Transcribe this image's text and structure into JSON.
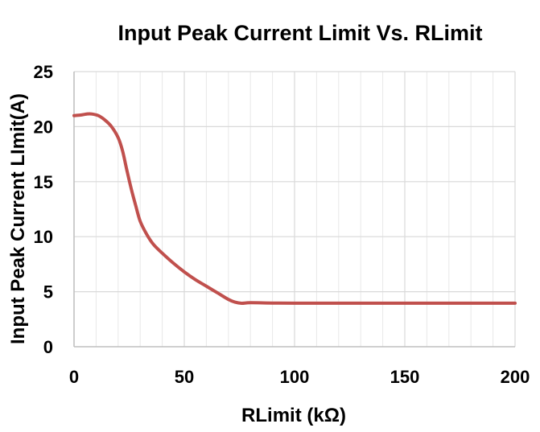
{
  "chart_data": {
    "type": "line",
    "title": "Input Peak Current Limit Vs. RLimit",
    "xlabel": "RLimit (kΩ)",
    "ylabel": "Input Peak Current LImit(A)",
    "xlim": [
      0,
      200
    ],
    "ylim": [
      0,
      25
    ],
    "x_ticks": [
      0,
      50,
      100,
      150,
      200
    ],
    "y_ticks": [
      0,
      5,
      10,
      15,
      20,
      25
    ],
    "x_minor_step": 10,
    "y_major_step": 5,
    "grid": true,
    "legend": "none",
    "series": [
      {
        "color": "#c0504d",
        "points": [
          [
            0,
            21.0
          ],
          [
            3,
            21.05
          ],
          [
            6,
            21.15
          ],
          [
            8,
            21.15
          ],
          [
            11,
            21.0
          ],
          [
            14,
            20.6
          ],
          [
            17,
            20.0
          ],
          [
            20,
            19.0
          ],
          [
            22,
            17.8
          ],
          [
            24,
            16.0
          ],
          [
            26,
            14.3
          ],
          [
            28,
            12.8
          ],
          [
            30,
            11.4
          ],
          [
            33,
            10.2
          ],
          [
            36,
            9.3
          ],
          [
            40,
            8.5
          ],
          [
            45,
            7.6
          ],
          [
            50,
            6.8
          ],
          [
            55,
            6.1
          ],
          [
            60,
            5.5
          ],
          [
            65,
            4.9
          ],
          [
            70,
            4.3
          ],
          [
            73,
            4.05
          ],
          [
            76,
            3.95
          ],
          [
            80,
            4.0
          ],
          [
            90,
            3.97
          ],
          [
            100,
            3.96
          ],
          [
            120,
            3.96
          ],
          [
            150,
            3.96
          ],
          [
            180,
            3.96
          ],
          [
            200,
            3.96
          ]
        ]
      }
    ]
  }
}
